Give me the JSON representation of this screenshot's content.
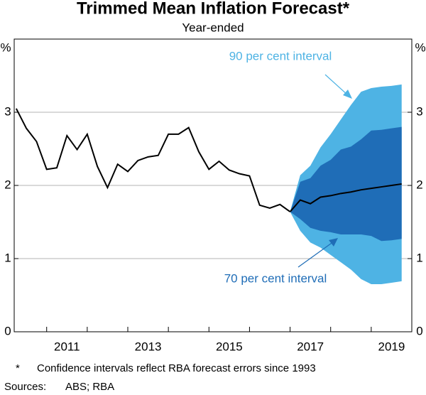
{
  "chart_data": {
    "type": "line",
    "title": "Trimmed Mean Inflation Forecast*",
    "subtitle": "Year-ended",
    "ylabel": "%",
    "xlim": [
      2010.2,
      2020
    ],
    "xticks": [
      2011,
      2013,
      2015,
      2017,
      2019
    ],
    "ylim": [
      0,
      4
    ],
    "yticks": [
      0,
      1,
      2,
      3
    ],
    "grid": true,
    "series": [
      {
        "color": "#000000",
        "x": [
          2010.25,
          2010.5,
          2010.75,
          2011,
          2011.25,
          2011.5,
          2011.75,
          2012,
          2012.25,
          2012.5,
          2012.75,
          2013,
          2013.25,
          2013.5,
          2013.75,
          2014,
          2014.25,
          2014.5,
          2014.75,
          2015,
          2015.25,
          2015.5,
          2015.75,
          2016,
          2016.25,
          2016.5,
          2016.75,
          2017
        ],
        "values": [
          3.05,
          2.78,
          2.6,
          2.22,
          2.24,
          2.68,
          2.49,
          2.7,
          2.26,
          1.97,
          2.29,
          2.19,
          2.34,
          2.39,
          2.41,
          2.7,
          2.7,
          2.79,
          2.46,
          2.22,
          2.33,
          2.21,
          2.16,
          2.13,
          1.73,
          1.69,
          1.74,
          1.64
        ]
      },
      {
        "color": "#000000",
        "x": [
          2017,
          2017.25,
          2017.5,
          2017.75,
          2018,
          2018.25,
          2018.5,
          2018.75,
          2019,
          2019.25,
          2019.5,
          2019.75
        ],
        "values": [
          1.64,
          1.8,
          1.75,
          1.84,
          1.86,
          1.89,
          1.91,
          1.94,
          1.96,
          1.98,
          2.0,
          2.02
        ]
      }
    ],
    "bands": [
      {
        "label": "90 per cent interval",
        "color": "#4eb3e4",
        "x": [
          2017,
          2017.25,
          2017.5,
          2017.75,
          2018,
          2018.25,
          2018.5,
          2018.75,
          2019,
          2019.25,
          2019.5,
          2019.75
        ],
        "upper": [
          1.64,
          2.14,
          2.27,
          2.52,
          2.7,
          2.9,
          3.1,
          3.28,
          3.33,
          3.35,
          3.36,
          3.38
        ],
        "lower": [
          1.64,
          1.38,
          1.22,
          1.15,
          1.05,
          0.95,
          0.85,
          0.72,
          0.65,
          0.65,
          0.67,
          0.69
        ]
      },
      {
        "label": "70 per cent interval",
        "color": "#1f6db7",
        "x": [
          2017,
          2017.25,
          2017.5,
          2017.75,
          2018,
          2018.25,
          2018.5,
          2018.75,
          2019,
          2019.25,
          2019.5,
          2019.75
        ],
        "upper": [
          1.64,
          2.05,
          2.1,
          2.27,
          2.35,
          2.49,
          2.53,
          2.63,
          2.75,
          2.76,
          2.78,
          2.8
        ],
        "lower": [
          1.64,
          1.54,
          1.42,
          1.38,
          1.36,
          1.33,
          1.33,
          1.33,
          1.31,
          1.24,
          1.25,
          1.27
        ]
      }
    ],
    "footnote_marker": "*",
    "footnote": "Confidence intervals reflect RBA forecast errors since 1993",
    "sources_label": "Sources:",
    "sources": "ABS; RBA"
  }
}
